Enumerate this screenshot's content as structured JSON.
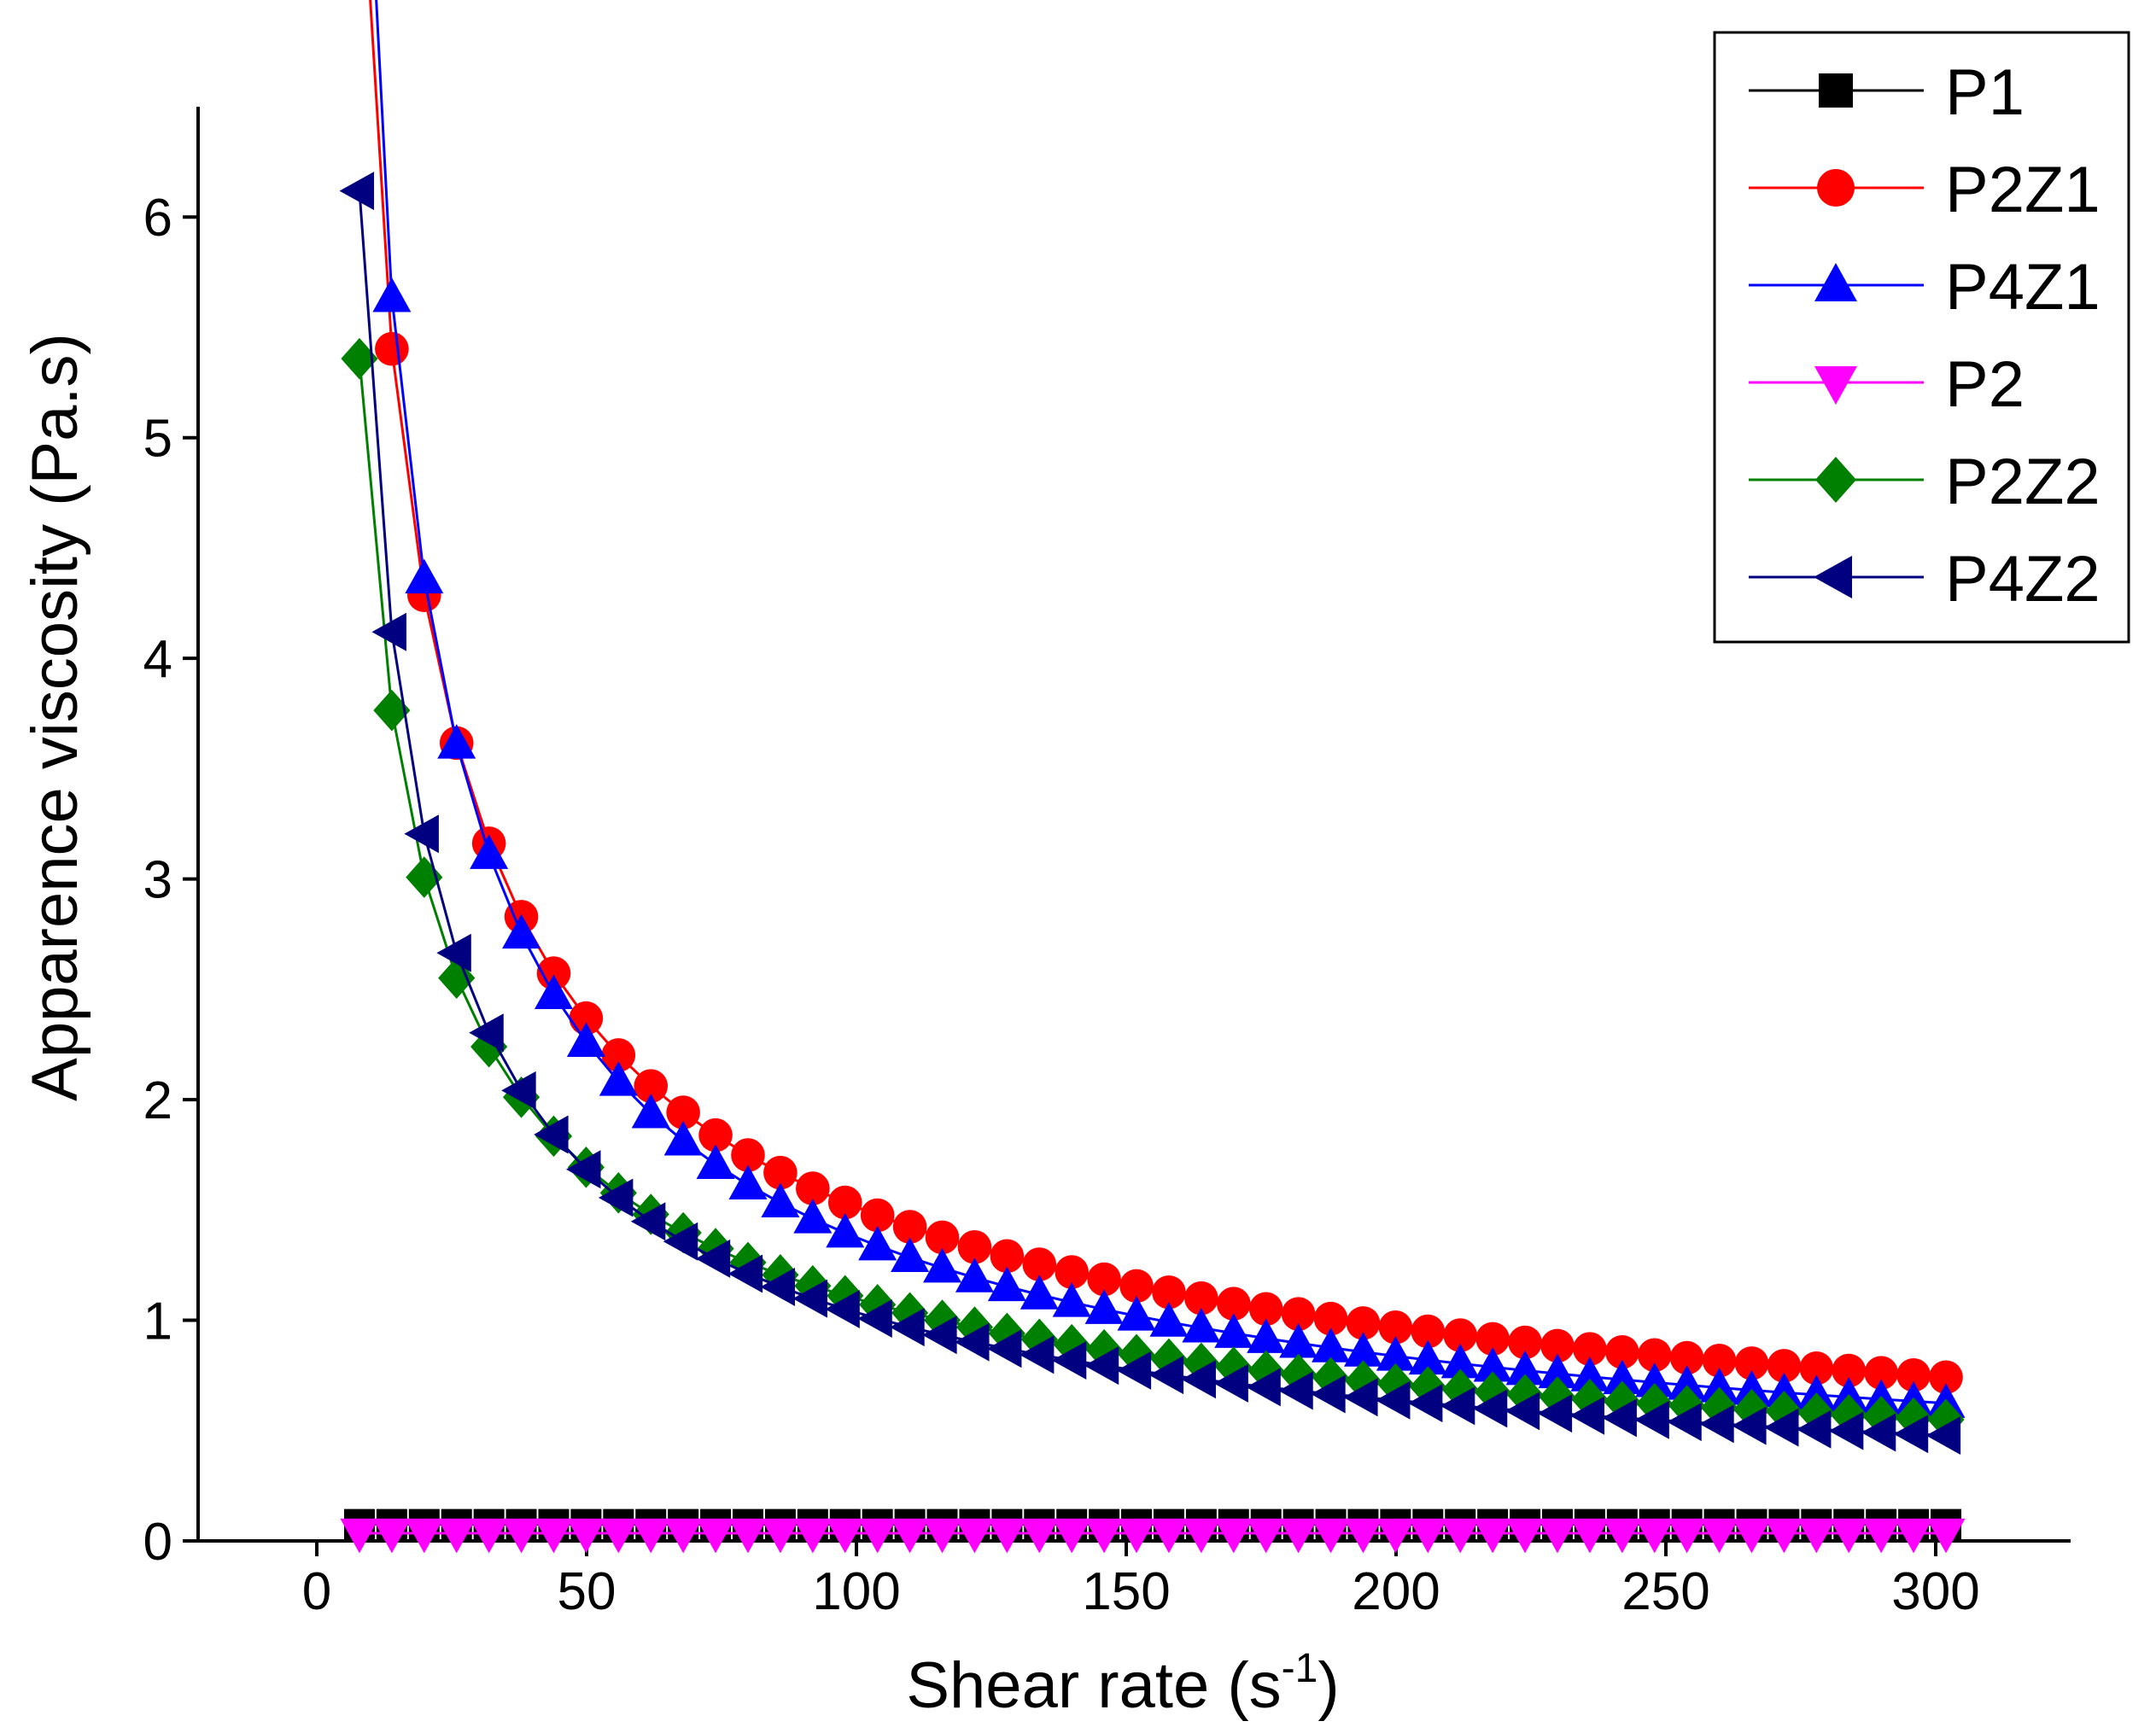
{
  "chart_data": {
    "type": "line",
    "title": "",
    "xlabel": "Shear rate (s",
    "xlabel_sup": "-1",
    "xlabel_close": ")",
    "ylabel": "Apparence viscosity (Pa.s)",
    "xlim": [
      -22,
      325
    ],
    "ylim": [
      0,
      6.5
    ],
    "xticks": [
      0,
      50,
      100,
      150,
      200,
      250,
      300
    ],
    "yticks": [
      0,
      1,
      2,
      3,
      4,
      5,
      6
    ],
    "x_start": 7.9,
    "x_step": 6.0,
    "n_points": 50,
    "legend_position": "top-right",
    "series": [
      {
        "name": "P1",
        "color": "#000000",
        "marker": "square",
        "A": 0.075,
        "n": 1.0
      },
      {
        "name": "P2Z1",
        "color": "#ff0000",
        "marker": "circle",
        "A": 29.5,
        "n": 0.355
      },
      {
        "name": "P4Z1",
        "color": "#0000ff",
        "marker": "triangle-up",
        "A": 37.0,
        "n": 0.285
      },
      {
        "name": "P2",
        "color": "#ff00ff",
        "marker": "triangle-down",
        "A": 0.035,
        "n": 1.0
      },
      {
        "name": "P2Z2",
        "color": "#008000",
        "marker": "diamond",
        "A": 19.5,
        "n": 0.375
      },
      {
        "name": "P4Z2",
        "color": "#000080",
        "marker": "triangle-left",
        "A": 26.0,
        "n": 0.3
      }
    ],
    "data_note": "Each series follows viscosity = A * shear_rate^(n-1) sampled at shear rates x_start + i*x_step"
  }
}
